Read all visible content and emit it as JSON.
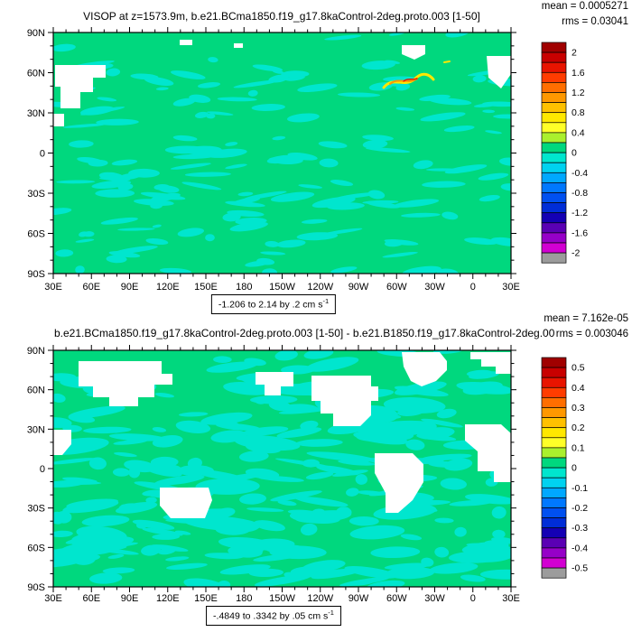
{
  "figure": {
    "background_color": "#ffffff",
    "text_color": "#000000"
  },
  "chart_data": [
    {
      "type": "heatmap",
      "panel": "top",
      "title": "VISOP at z=1573.9m, b.e21.BCma1850.f19_g17.8kaControl-2deg.proto.003 [1-50]",
      "mean_text": "mean = 0.0005271",
      "rms_text": "rms = 0.03041",
      "range_text": "-1.206 to 2.14 by .2 cm s",
      "range_exponent": "-1",
      "data_min": -1.206,
      "data_max": 2.14,
      "contour_interval": 0.2,
      "x_tick_labels": [
        "30E",
        "60E",
        "90E",
        "120E",
        "150E",
        "180",
        "150W",
        "120W",
        "90W",
        "60W",
        "30W",
        "0",
        "30E"
      ],
      "y_tick_labels": [
        "90N",
        "60N",
        "30N",
        "0",
        "30S",
        "60S",
        "90S"
      ],
      "colorbar_labels": [
        "2",
        "1.6",
        "1.2",
        "0.8",
        "0.4",
        "0",
        "-0.4",
        "-0.8",
        "-1.2",
        "-1.6",
        "-2"
      ],
      "colorbar_colors": [
        "#A00000",
        "#C80000",
        "#E81400",
        "#FF3C00",
        "#FF6E00",
        "#FF9800",
        "#FFC100",
        "#FFE800",
        "#FFFF28",
        "#AAF02D",
        "#00D87E",
        "#00E6CE",
        "#00D2F0",
        "#00A8FF",
        "#0078FF",
        "#0050F0",
        "#002DD7",
        "#1400B4",
        "#5A00B4",
        "#9600C8",
        "#D200D2",
        "#9C9C9C"
      ],
      "ocean_fill_color": "#00D87E",
      "patch_fill_color": "#00E6CE",
      "land_color": "#ffffff",
      "field_summary": "near-uniform field in the 0 to 0.2 band (green) with scattered -0.2 to 0 patches (cyan); small white masked areas at high latitudes; localized positive maxima (yellow/orange/red) in the northwest North Atlantic"
    },
    {
      "type": "heatmap",
      "panel": "bottom",
      "title": "b.e21.BCma1850.f19_g17.8kaControl-2deg.proto.003 [1-50] - b.e21.B1850.f19_g17.8kaControl-2deg.00",
      "mean_text": "mean = 7.162e-05",
      "rms_text": "rms = 0.003046",
      "range_text": "-.4849 to .3342 by .05 cm s",
      "range_exponent": "-1",
      "data_min": -0.4849,
      "data_max": 0.3342,
      "contour_interval": 0.05,
      "x_tick_labels": [
        "30E",
        "60E",
        "90E",
        "120E",
        "150E",
        "180",
        "150W",
        "120W",
        "90W",
        "60W",
        "30W",
        "0",
        "30E"
      ],
      "y_tick_labels": [
        "90N",
        "60N",
        "30N",
        "0",
        "30S",
        "60S",
        "90S"
      ],
      "colorbar_labels": [
        "0.5",
        "0.4",
        "0.3",
        "0.2",
        "0.1",
        "0",
        "-0.1",
        "-0.2",
        "-0.3",
        "-0.4",
        "-0.5"
      ],
      "colorbar_colors": [
        "#A00000",
        "#C80000",
        "#E81400",
        "#FF3C00",
        "#FF6E00",
        "#FF9800",
        "#FFC100",
        "#FFE800",
        "#FFFF28",
        "#AAF02D",
        "#00D87E",
        "#00E6CE",
        "#00D2F0",
        "#00A8FF",
        "#0078FF",
        "#0050F0",
        "#002DD7",
        "#1400B4",
        "#5A00B4",
        "#9600C8",
        "#D200D2",
        "#9C9C9C"
      ],
      "ocean_fill_color": "#00D87E",
      "patch_fill_color": "#00E6CE",
      "land_color": "#ffffff",
      "field_summary": "difference field near zero: 0 to 0.05 band (green) with widespread -0.05 to 0 patches (cyan); continents masked as blocky white regions"
    }
  ]
}
